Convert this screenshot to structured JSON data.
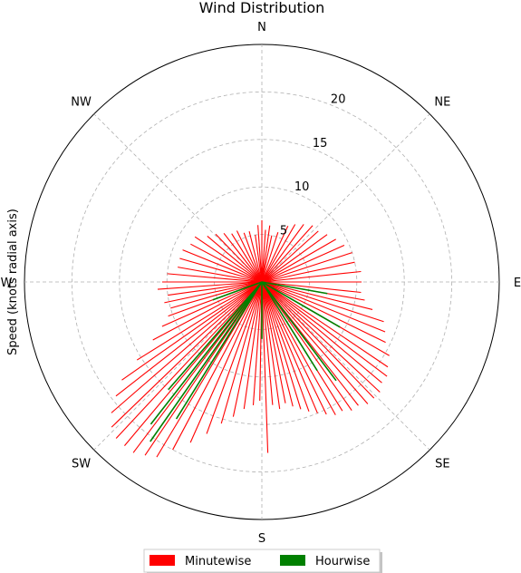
{
  "chart_data": {
    "type": "polar-bar",
    "title": "Wind Distribution",
    "ylabel": "Speed (knots radial axis)",
    "directions": [
      "N",
      "NE",
      "E",
      "SE",
      "S",
      "SW",
      "W",
      "NW"
    ],
    "radial_ticks": [
      5,
      10,
      15,
      20
    ],
    "rlim": [
      0,
      25
    ],
    "grid": true,
    "legend_placement": "bottom-center",
    "series": [
      {
        "name": "Minutewise",
        "color": "#ff0000",
        "points": [
          {
            "dir": 0,
            "speed": 6.5
          },
          {
            "dir": 4,
            "speed": 5.5
          },
          {
            "dir": 8,
            "speed": 6.0
          },
          {
            "dir": 12,
            "speed": 5.0
          },
          {
            "dir": 18,
            "speed": 5.5
          },
          {
            "dir": 25,
            "speed": 6.5
          },
          {
            "dir": 30,
            "speed": 7.0
          },
          {
            "dir": 36,
            "speed": 7.5
          },
          {
            "dir": 42,
            "speed": 8.0
          },
          {
            "dir": 48,
            "speed": 8.0
          },
          {
            "dir": 54,
            "speed": 8.5
          },
          {
            "dir": 60,
            "speed": 9.0
          },
          {
            "dir": 66,
            "speed": 9.5
          },
          {
            "dir": 72,
            "speed": 10.0
          },
          {
            "dir": 78,
            "speed": 10.0
          },
          {
            "dir": 84,
            "speed": 10.5
          },
          {
            "dir": 90,
            "speed": 10.5
          },
          {
            "dir": 96,
            "speed": 10.5
          },
          {
            "dir": 100,
            "speed": 11.0
          },
          {
            "dir": 104,
            "speed": 12.0
          },
          {
            "dir": 108,
            "speed": 13.5
          },
          {
            "dir": 112,
            "speed": 14.0
          },
          {
            "dir": 116,
            "speed": 14.5
          },
          {
            "dir": 120,
            "speed": 15.5
          },
          {
            "dir": 124,
            "speed": 16.0
          },
          {
            "dir": 127,
            "speed": 16.5
          },
          {
            "dir": 130,
            "speed": 16.5
          },
          {
            "dir": 133,
            "speed": 17.0
          },
          {
            "dir": 136,
            "speed": 17.0
          },
          {
            "dir": 139,
            "speed": 17.0
          },
          {
            "dir": 142,
            "speed": 16.5
          },
          {
            "dir": 145,
            "speed": 16.5
          },
          {
            "dir": 148,
            "speed": 16.0
          },
          {
            "dir": 151,
            "speed": 16.0
          },
          {
            "dir": 154,
            "speed": 15.5
          },
          {
            "dir": 157,
            "speed": 15.0
          },
          {
            "dir": 160,
            "speed": 14.5
          },
          {
            "dir": 163,
            "speed": 14.0
          },
          {
            "dir": 166,
            "speed": 13.5
          },
          {
            "dir": 169,
            "speed": 13.0
          },
          {
            "dir": 172,
            "speed": 13.5
          },
          {
            "dir": 175,
            "speed": 13.0
          },
          {
            "dir": 178,
            "speed": 18.0
          },
          {
            "dir": 181,
            "speed": 12.5
          },
          {
            "dir": 184,
            "speed": 13.0
          },
          {
            "dir": 188,
            "speed": 13.5
          },
          {
            "dir": 192,
            "speed": 14.5
          },
          {
            "dir": 196,
            "speed": 15.5
          },
          {
            "dir": 200,
            "speed": 17.0
          },
          {
            "dir": 204,
            "speed": 18.5
          },
          {
            "dir": 208,
            "speed": 20.0
          },
          {
            "dir": 211,
            "speed": 21.5
          },
          {
            "dir": 214,
            "speed": 22.0
          },
          {
            "dir": 217,
            "speed": 22.5
          },
          {
            "dir": 220,
            "speed": 22.5
          },
          {
            "dir": 223,
            "speed": 22.5
          },
          {
            "dir": 226,
            "speed": 22.0
          },
          {
            "dir": 229,
            "speed": 21.0
          },
          {
            "dir": 232,
            "speed": 19.5
          },
          {
            "dir": 235,
            "speed": 18.0
          },
          {
            "dir": 238,
            "speed": 15.5
          },
          {
            "dir": 242,
            "speed": 13.0
          },
          {
            "dir": 246,
            "speed": 11.5
          },
          {
            "dir": 250,
            "speed": 10.5
          },
          {
            "dir": 254,
            "speed": 10.0
          },
          {
            "dir": 258,
            "speed": 10.5
          },
          {
            "dir": 262,
            "speed": 10.0
          },
          {
            "dir": 266,
            "speed": 11.0
          },
          {
            "dir": 270,
            "speed": 10.5
          },
          {
            "dir": 275,
            "speed": 10.0
          },
          {
            "dir": 280,
            "speed": 9.0
          },
          {
            "dir": 286,
            "speed": 9.0
          },
          {
            "dir": 292,
            "speed": 9.0
          },
          {
            "dir": 298,
            "speed": 8.5
          },
          {
            "dir": 304,
            "speed": 8.5
          },
          {
            "dir": 310,
            "speed": 7.5
          },
          {
            "dir": 316,
            "speed": 7.0
          },
          {
            "dir": 322,
            "speed": 6.5
          },
          {
            "dir": 328,
            "speed": 6.0
          },
          {
            "dir": 334,
            "speed": 6.0
          },
          {
            "dir": 340,
            "speed": 5.5
          },
          {
            "dir": 346,
            "speed": 5.5
          },
          {
            "dir": 352,
            "speed": 5.0
          },
          {
            "dir": 356,
            "speed": 6.0
          }
        ]
      },
      {
        "name": "Hourwise",
        "color": "#008000",
        "points": [
          {
            "dir": 212,
            "speed": 17.0
          },
          {
            "dir": 215,
            "speed": 20.5
          },
          {
            "dir": 218,
            "speed": 19.0
          },
          {
            "dir": 221,
            "speed": 15.0
          },
          {
            "dir": 143,
            "speed": 13.0
          },
          {
            "dir": 148,
            "speed": 11.0
          },
          {
            "dir": 120,
            "speed": 9.5
          },
          {
            "dir": 100,
            "speed": 7.0
          },
          {
            "dir": 180,
            "speed": 6.0
          },
          {
            "dir": 250,
            "speed": 5.5
          }
        ]
      }
    ]
  }
}
